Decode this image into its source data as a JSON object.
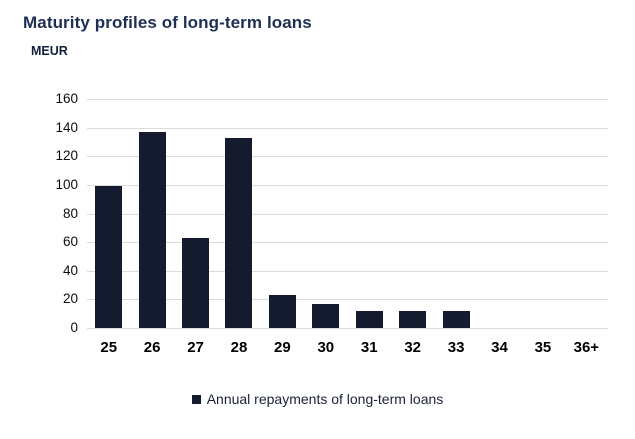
{
  "chart_data": {
    "type": "bar",
    "title": "Maturity profiles of long-term loans",
    "ylabel": "MEUR",
    "xlabel": "",
    "categories": [
      "25",
      "26",
      "27",
      "28",
      "29",
      "30",
      "31",
      "32",
      "33",
      "34",
      "35",
      "36+"
    ],
    "series": [
      {
        "name": "Annual repayments of long-term loans",
        "values": [
          99,
          137,
          63,
          133,
          23,
          17,
          12,
          12,
          12,
          0,
          0,
          0
        ]
      }
    ],
    "ylim": [
      0,
      160
    ],
    "yticks": [
      160,
      140,
      120,
      100,
      80,
      60,
      40,
      20,
      0
    ],
    "grid": "horizontal",
    "legend_position": "bottom-center",
    "colors": {
      "bar": "#141b2e",
      "title": "#1e2f55",
      "unit_label": "#13203c",
      "gridline": "#dcdcdc",
      "legend_text": "#1a2238",
      "tick_text": "#0d0d0d"
    }
  }
}
